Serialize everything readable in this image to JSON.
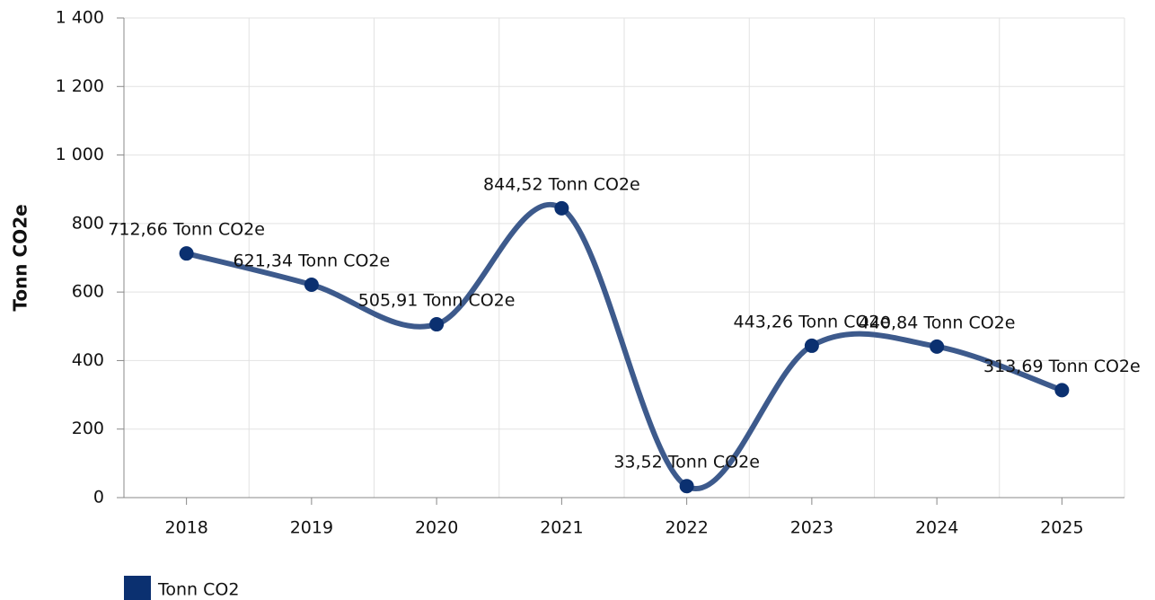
{
  "chart_data": {
    "type": "line",
    "y_label": "Tonn CO2e",
    "categories": [
      "2018",
      "2019",
      "2020",
      "2021",
      "2022",
      "2023",
      "2024",
      "2025"
    ],
    "series": [
      {
        "name": "Tonn CO2",
        "color": "#0b3070",
        "line_color": "#3d5a8c",
        "values": [
          712.66,
          621.34,
          505.91,
          844.52,
          33.52,
          443.26,
          440.84,
          313.69
        ],
        "value_labels": [
          "712,66 Tonn CO2e",
          "621,34 Tonn CO2e",
          "505,91 Tonn CO2e",
          "844,52 Tonn CO2e",
          "33,52 Tonn CO2e",
          "443,26 Tonn CO2e",
          "440,84 Tonn CO2e",
          "313,69 Tonn CO2e"
        ]
      }
    ],
    "ylim": [
      0,
      1400
    ],
    "yticks": [
      0,
      200,
      400,
      600,
      800,
      {
        "value": 1000,
        "label": "1 000"
      },
      {
        "value": 1200,
        "label": "1 200"
      },
      {
        "value": 1400,
        "label": "1 400"
      }
    ],
    "grid": true,
    "smooth": true,
    "legend": "bottom-left"
  }
}
